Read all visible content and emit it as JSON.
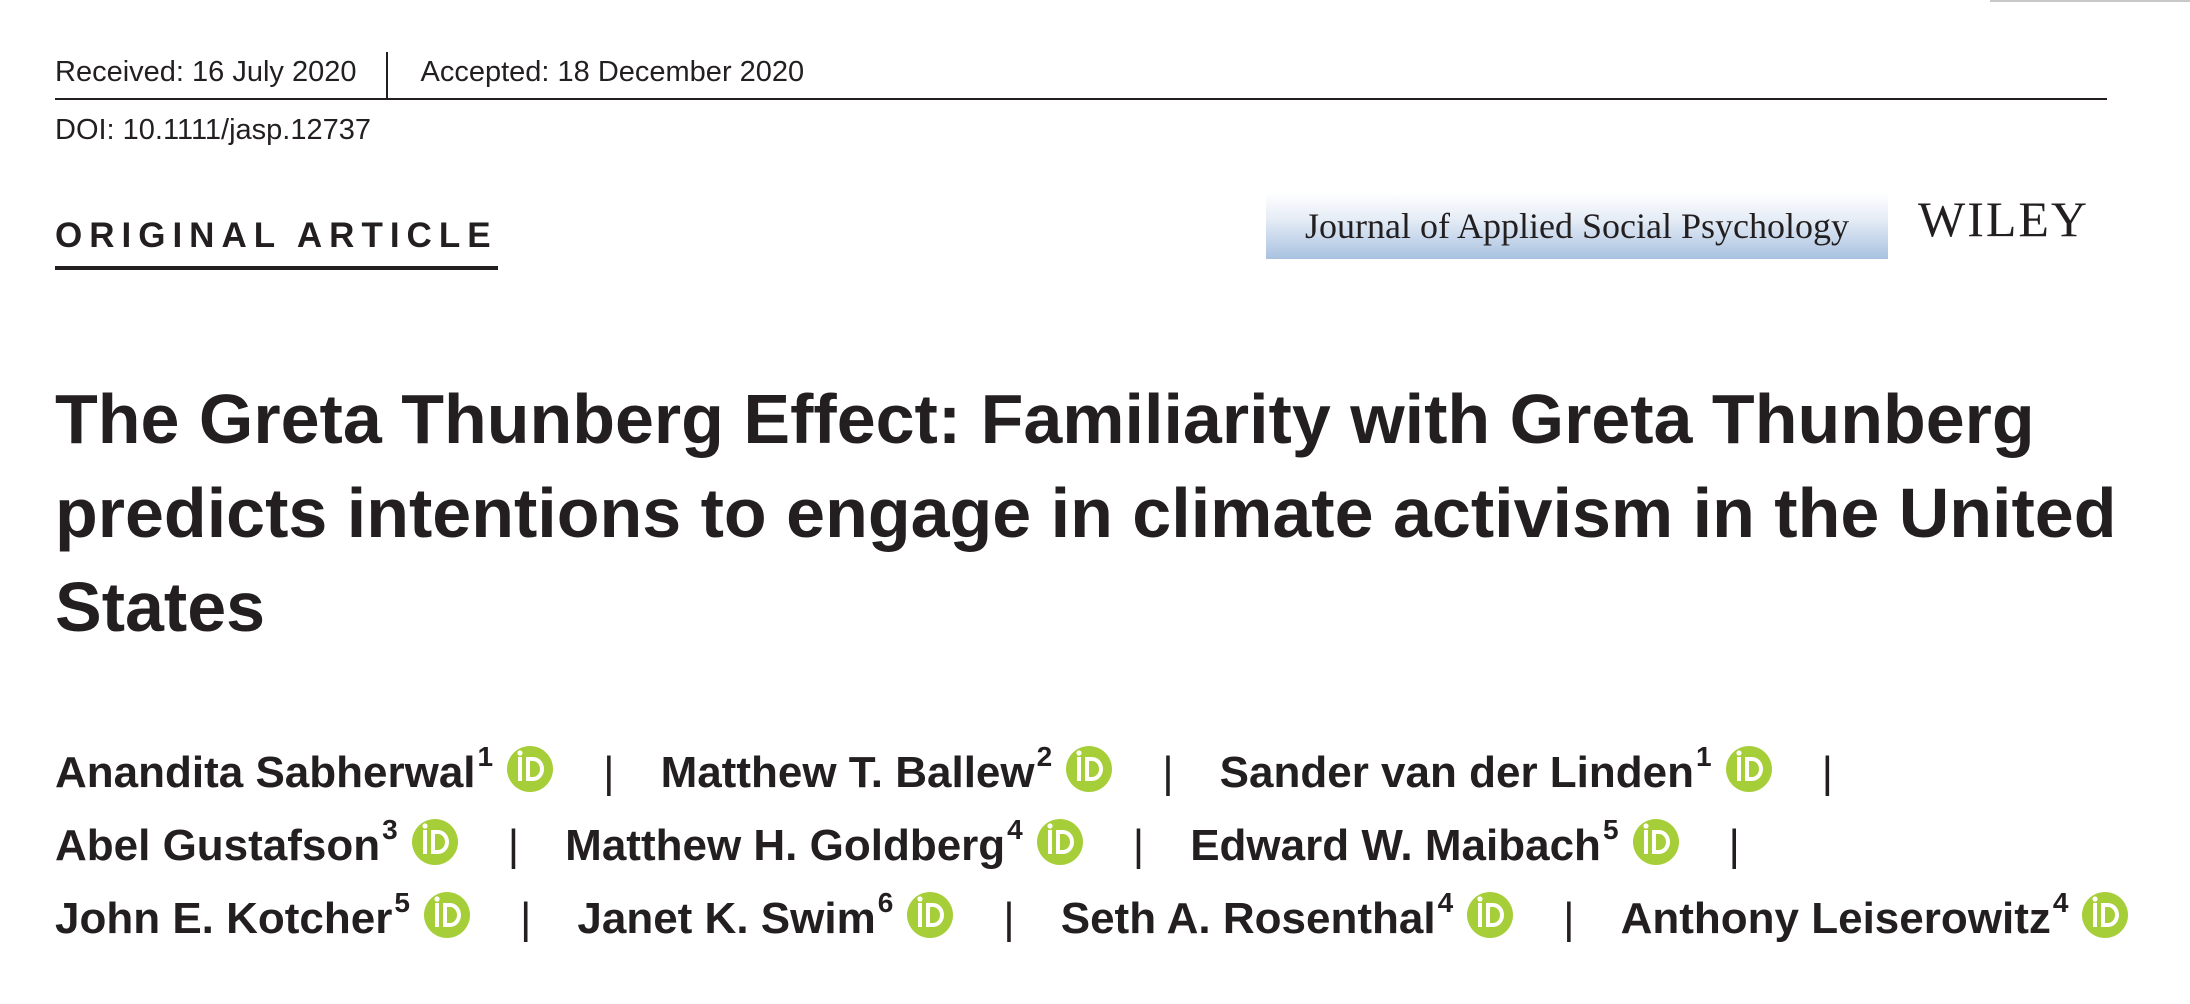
{
  "header": {
    "received": "Received: 16 July 2020",
    "accepted": "Accepted: 18 December 2020",
    "doi": "DOI: 10.1111/jasp.12737",
    "article_type": "ORIGINAL ARTICLE",
    "journal": "Journal of Applied Social Psychology",
    "publisher": "WILEY"
  },
  "title": "The Greta Thunberg Effect: Familiarity with Greta Thunberg predicts intentions to engage in climate activism in the United States",
  "separator": "|",
  "authors": [
    {
      "name": "Anandita Sabherwal",
      "affil": "1"
    },
    {
      "name": "Matthew T. Ballew",
      "affil": "2"
    },
    {
      "name": "Sander van der Linden",
      "affil": "1"
    },
    {
      "name": "Abel Gustafson",
      "affil": "3"
    },
    {
      "name": "Matthew H. Goldberg",
      "affil": "4"
    },
    {
      "name": "Edward W. Maibach",
      "affil": "5"
    },
    {
      "name": "John E. Kotcher",
      "affil": "5"
    },
    {
      "name": "Janet K. Swim",
      "affil": "6"
    },
    {
      "name": "Seth A. Rosenthal",
      "affil": "4"
    },
    {
      "name": "Anthony Leiserowitz",
      "affil": "4"
    }
  ],
  "icons": {
    "orcid": "orcid-icon",
    "orcid_color": "#a6ce39"
  }
}
